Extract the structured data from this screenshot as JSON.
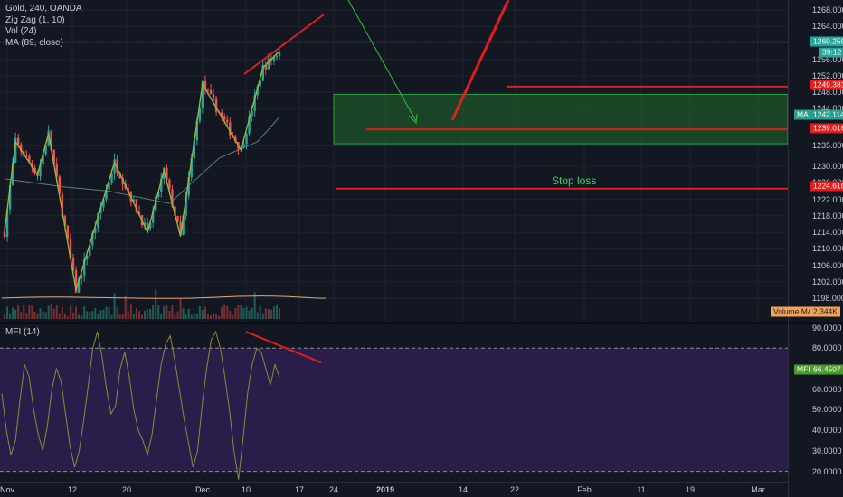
{
  "legend": {
    "symbol": "Gold, 240, OANDA",
    "zigzag": "Zig Zag (1, 10)",
    "volume": "Vol (24)",
    "ma": "MA (89, close)"
  },
  "mfi_legend": "MFI (14)",
  "annotation": {
    "stop_loss": "Stop loss"
  },
  "colors": {
    "background": "#131722",
    "candle_up": "#26a69a",
    "candle_down": "#ef5350",
    "zigzag": "#9bbb3e",
    "annotation_red": "#e01e1e",
    "arrow_green": "#2fbf3a",
    "target_zone": "#1f6b2a",
    "mfi_fill": "#2a1d4a"
  },
  "price_badges": {
    "last_price": "1260.259",
    "countdown": "39:12",
    "level_1": "1249.381",
    "ma": "MA",
    "ma_value": "1242.114",
    "level_2": "1239.016",
    "level_3": "1224.616",
    "volume_ma": "Volume MA",
    "volume_ma_value": "2.344K",
    "mfi": "MFI",
    "mfi_value": "66.4507"
  },
  "chart_data": [
    {
      "type": "candlestick",
      "title": "Gold, 240, OANDA",
      "ylim": [
        1194,
        1270
      ],
      "y_ticks": [
        "1268.000",
        "1264.000",
        "1260.000",
        "1256.000",
        "1252.000",
        "1248.000",
        "1244.000",
        "1235.000",
        "1230.000",
        "1226.000",
        "1222.000",
        "1218.000",
        "1214.000",
        "1210.000",
        "1206.000",
        "1202.000",
        "1198.000"
      ],
      "x_ticks": [
        "Nov",
        "12",
        "20",
        "Dec",
        "10",
        "17",
        "24",
        "2019",
        "14",
        "22",
        "Feb",
        "11",
        "19",
        "Mar"
      ],
      "zigzag_points": [
        {
          "date": "Nov 1",
          "price": 1214
        },
        {
          "date": "Nov 3",
          "price": 1236
        },
        {
          "date": "Nov 7",
          "price": 1228
        },
        {
          "date": "Nov 9",
          "price": 1238
        },
        {
          "date": "Nov 14",
          "price": 1200
        },
        {
          "date": "Nov 21",
          "price": 1231
        },
        {
          "date": "Nov 27",
          "price": 1214
        },
        {
          "date": "Nov 30",
          "price": 1229
        },
        {
          "date": "Dec 3",
          "price": 1213
        },
        {
          "date": "Dec 7",
          "price": 1250
        },
        {
          "date": "Dec 14",
          "price": 1234
        },
        {
          "date": "Dec 18",
          "price": 1254
        },
        {
          "date": "Dec 21",
          "price": 1258
        }
      ],
      "ma": [
        {
          "date": "Nov 1",
          "price": 1227
        },
        {
          "date": "Nov 12",
          "price": 1225
        },
        {
          "date": "Nov 20",
          "price": 1224
        },
        {
          "date": "Dec 1",
          "price": 1221
        },
        {
          "date": "Dec 10",
          "price": 1232
        },
        {
          "date": "Dec 17",
          "price": 1236
        },
        {
          "date": "Dec 21",
          "price": 1242
        }
      ],
      "last_price": 1260.259,
      "levels": [
        1249.381,
        1239.016,
        1224.616
      ],
      "target_zone": [
        1235.5,
        1247.5
      ]
    },
    {
      "type": "line",
      "title": "MFI (14)",
      "ylim": [
        15,
        92
      ],
      "y_ticks": [
        "90.0000",
        "80.0000",
        "70.0000",
        "60.0000",
        "50.0000",
        "40.0000",
        "30.0000",
        "20.0000"
      ],
      "bands": [
        80,
        20
      ],
      "series": [
        {
          "values": [
            58,
            40,
            28,
            35,
            55,
            72,
            66,
            50,
            38,
            30,
            42,
            60,
            70,
            64,
            48,
            32,
            22,
            30,
            45,
            62,
            80,
            88,
            76,
            60,
            48,
            52,
            70,
            78,
            66,
            50,
            40,
            35,
            28,
            38,
            55,
            72,
            82,
            86,
            74,
            60,
            46,
            34,
            22,
            30,
            52,
            70,
            84,
            88,
            80,
            66,
            50,
            30,
            16,
            36,
            58,
            72,
            80,
            78,
            70,
            62,
            72,
            66
          ]
        }
      ],
      "last_value": 66.4507
    }
  ]
}
